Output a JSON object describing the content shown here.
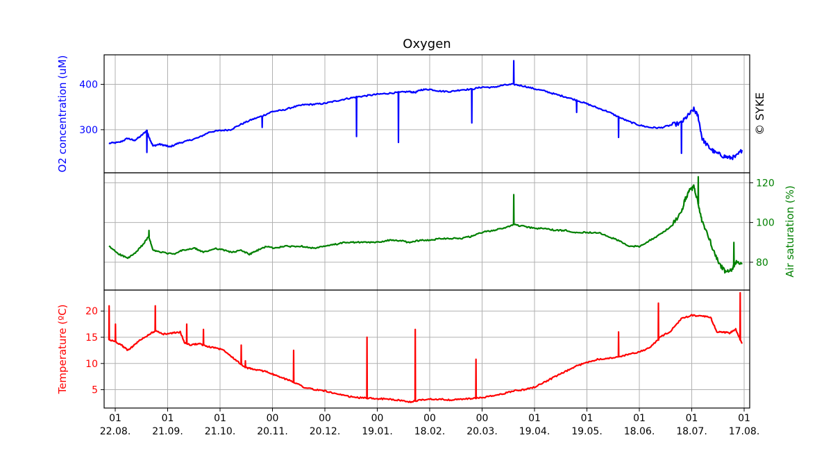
{
  "title": "Oxygen",
  "watermark": "© SYKE",
  "colors": {
    "o2": "#0000ff",
    "sat": "#008000",
    "temp": "#ff0000",
    "grid": "#b0b0b0"
  },
  "x_ticks": [
    {
      "top": "01",
      "bottom": "22.08."
    },
    {
      "top": "01",
      "bottom": "21.09."
    },
    {
      "top": "01",
      "bottom": "21.10."
    },
    {
      "top": "00",
      "bottom": "20.11."
    },
    {
      "top": "00",
      "bottom": "20.12."
    },
    {
      "top": "00",
      "bottom": "19.01."
    },
    {
      "top": "00",
      "bottom": "18.02."
    },
    {
      "top": "00",
      "bottom": "20.03."
    },
    {
      "top": "01",
      "bottom": "19.04."
    },
    {
      "top": "01",
      "bottom": "19.05."
    },
    {
      "top": "01",
      "bottom": "18.06."
    },
    {
      "top": "01",
      "bottom": "18.07."
    },
    {
      "top": "01",
      "bottom": "17.08."
    }
  ],
  "chart_data": [
    {
      "type": "line",
      "title": "Oxygen",
      "ylabel": "O2 concentration (uM)",
      "yticks": [
        300,
        400
      ],
      "ylim": [
        205,
        465
      ],
      "grid": true,
      "series": [
        {
          "points": [
            [
              -0.3,
              270
            ],
            [
              0.2,
              272
            ],
            [
              0.6,
              281
            ],
            [
              0.9,
              276
            ],
            [
              1.2,
              285
            ],
            [
              1.5,
              298
            ],
            [
              1.6,
              285
            ],
            [
              1.8,
              264
            ],
            [
              2.1,
              268
            ],
            [
              2.4,
              265
            ],
            [
              2.6,
              262
            ],
            [
              3.0,
              270
            ],
            [
              3.5,
              276
            ],
            [
              4.0,
              283
            ],
            [
              4.5,
              295
            ],
            [
              5.0,
              298
            ],
            [
              5.5,
              300
            ],
            [
              6.0,
              312
            ],
            [
              6.5,
              322
            ],
            [
              7.0,
              330
            ],
            [
              7.5,
              340
            ],
            [
              8.0,
              343
            ],
            [
              8.5,
              350
            ],
            [
              9.0,
              355
            ],
            [
              9.5,
              356
            ],
            [
              10.0,
              358
            ],
            [
              10.5,
              363
            ],
            [
              11.0,
              368
            ],
            [
              11.5,
              372
            ],
            [
              12.0,
              375
            ],
            [
              12.5,
              378
            ],
            [
              13.0,
              380
            ],
            [
              13.5,
              382
            ],
            [
              14.0,
              384
            ],
            [
              14.3,
              382
            ],
            [
              14.6,
              388
            ],
            [
              15.0,
              389
            ],
            [
              15.5,
              385
            ],
            [
              16.0,
              384
            ],
            [
              16.5,
              388
            ],
            [
              17.0,
              389
            ],
            [
              17.5,
              394
            ],
            [
              18.0,
              393
            ],
            [
              18.5,
              398
            ],
            [
              19.0,
              400
            ],
            [
              19.5,
              396
            ],
            [
              20.0,
              390
            ],
            [
              20.5,
              385
            ],
            [
              21.0,
              378
            ],
            [
              21.5,
              372
            ],
            [
              22.0,
              365
            ],
            [
              22.5,
              357
            ],
            [
              23.0,
              348
            ],
            [
              23.5,
              340
            ],
            [
              24.0,
              328
            ],
            [
              24.5,
              318
            ],
            [
              25.0,
              310
            ],
            [
              25.5,
              305
            ],
            [
              26.0,
              304
            ],
            [
              26.5,
              310
            ],
            [
              27.0,
              315
            ],
            [
              27.3,
              330
            ],
            [
              27.6,
              345
            ],
            [
              27.8,
              330
            ],
            [
              28.0,
              280
            ],
            [
              28.3,
              262
            ],
            [
              28.6,
              250
            ],
            [
              29.0,
              242
            ],
            [
              29.3,
              238
            ],
            [
              29.6,
              240
            ],
            [
              29.9,
              255
            ]
          ],
          "spikes": [
            [
              1.5,
              250
            ],
            [
              7.0,
              305
            ],
            [
              11.5,
              285
            ],
            [
              13.5,
              272
            ],
            [
              17.0,
              315
            ],
            [
              19.0,
              452
            ],
            [
              22.0,
              338
            ],
            [
              24.0,
              283
            ],
            [
              27.0,
              248
            ]
          ]
        }
      ]
    },
    {
      "type": "line",
      "ylabel": "Air saturation (%)",
      "yticks": [
        80,
        100,
        120
      ],
      "ylim": [
        66,
        125
      ],
      "grid": true,
      "series": [
        {
          "points": [
            [
              -0.3,
              88
            ],
            [
              0.2,
              84
            ],
            [
              0.6,
              82
            ],
            [
              1.0,
              85
            ],
            [
              1.4,
              90
            ],
            [
              1.6,
              93
            ],
            [
              1.8,
              86
            ],
            [
              2.2,
              85
            ],
            [
              2.8,
              84
            ],
            [
              3.2,
              86
            ],
            [
              3.8,
              87
            ],
            [
              4.2,
              85
            ],
            [
              4.8,
              87
            ],
            [
              5.2,
              86
            ],
            [
              5.6,
              85
            ],
            [
              6.0,
              86
            ],
            [
              6.4,
              84
            ],
            [
              6.8,
              86
            ],
            [
              7.2,
              88
            ],
            [
              7.6,
              87
            ],
            [
              8.0,
              88
            ],
            [
              8.5,
              88
            ],
            [
              9.0,
              88
            ],
            [
              9.5,
              87
            ],
            [
              10.0,
              88
            ],
            [
              10.5,
              89
            ],
            [
              11.0,
              90
            ],
            [
              11.5,
              90
            ],
            [
              12.0,
              90
            ],
            [
              12.5,
              90
            ],
            [
              13.0,
              91
            ],
            [
              13.5,
              91
            ],
            [
              14.0,
              90
            ],
            [
              14.5,
              91
            ],
            [
              15.0,
              91
            ],
            [
              15.5,
              92
            ],
            [
              16.0,
              92
            ],
            [
              16.5,
              92
            ],
            [
              17.0,
              93
            ],
            [
              17.5,
              95
            ],
            [
              18.0,
              96
            ],
            [
              18.5,
              97
            ],
            [
              19.0,
              99
            ],
            [
              19.5,
              98
            ],
            [
              20.0,
              97
            ],
            [
              20.5,
              97
            ],
            [
              21.0,
              96
            ],
            [
              21.5,
              96
            ],
            [
              22.0,
              95
            ],
            [
              22.5,
              95
            ],
            [
              23.0,
              95
            ],
            [
              23.5,
              93
            ],
            [
              24.0,
              91
            ],
            [
              24.5,
              88
            ],
            [
              25.0,
              88
            ],
            [
              25.5,
              91
            ],
            [
              26.0,
              94
            ],
            [
              26.5,
              98
            ],
            [
              27.0,
              105
            ],
            [
              27.2,
              112
            ],
            [
              27.4,
              116
            ],
            [
              27.6,
              118
            ],
            [
              27.8,
              110
            ],
            [
              28.0,
              100
            ],
            [
              28.3,
              93
            ],
            [
              28.6,
              84
            ],
            [
              28.9,
              78
            ],
            [
              29.1,
              75
            ],
            [
              29.4,
              76
            ],
            [
              29.6,
              80
            ],
            [
              29.9,
              79
            ]
          ],
          "spikes": [
            [
              1.6,
              96
            ],
            [
              19.0,
              114
            ],
            [
              27.8,
              123
            ],
            [
              29.5,
              90
            ]
          ]
        }
      ]
    },
    {
      "type": "line",
      "ylabel": "Temperature (ºC)",
      "yticks": [
        5,
        10,
        15,
        20
      ],
      "ylim": [
        1.5,
        24
      ],
      "grid": true,
      "series": [
        {
          "points": [
            [
              -0.3,
              14.5
            ],
            [
              0.0,
              14.2
            ],
            [
              0.3,
              13.5
            ],
            [
              0.6,
              12.5
            ],
            [
              0.9,
              13.5
            ],
            [
              1.2,
              14.5
            ],
            [
              1.6,
              15.5
            ],
            [
              1.9,
              16.2
            ],
            [
              2.3,
              15.6
            ],
            [
              2.7,
              15.8
            ],
            [
              3.1,
              16.0
            ],
            [
              3.3,
              14.0
            ],
            [
              3.6,
              13.5
            ],
            [
              4.0,
              13.8
            ],
            [
              4.4,
              13.2
            ],
            [
              4.8,
              13.0
            ],
            [
              5.2,
              12.5
            ],
            [
              5.5,
              11.5
            ],
            [
              5.8,
              10.5
            ],
            [
              6.2,
              9.2
            ],
            [
              6.5,
              9.0
            ],
            [
              6.8,
              8.7
            ],
            [
              7.2,
              8.5
            ],
            [
              7.6,
              7.8
            ],
            [
              8.0,
              7.2
            ],
            [
              8.5,
              6.5
            ],
            [
              9.0,
              5.5
            ],
            [
              9.5,
              5.0
            ],
            [
              10.0,
              4.8
            ],
            [
              10.5,
              4.2
            ],
            [
              11.0,
              3.8
            ],
            [
              11.5,
              3.5
            ],
            [
              12.0,
              3.4
            ],
            [
              12.5,
              3.3
            ],
            [
              13.0,
              3.2
            ],
            [
              13.5,
              3.0
            ],
            [
              14.0,
              2.6
            ],
            [
              14.5,
              3.0
            ],
            [
              15.0,
              3.2
            ],
            [
              15.5,
              3.2
            ],
            [
              16.0,
              3.0
            ],
            [
              16.5,
              3.2
            ],
            [
              17.0,
              3.3
            ],
            [
              17.5,
              3.5
            ],
            [
              18.0,
              3.8
            ],
            [
              18.5,
              4.2
            ],
            [
              19.0,
              4.8
            ],
            [
              19.5,
              5.0
            ],
            [
              20.0,
              5.5
            ],
            [
              20.5,
              6.5
            ],
            [
              21.0,
              7.5
            ],
            [
              21.5,
              8.5
            ],
            [
              22.0,
              9.5
            ],
            [
              22.5,
              10.2
            ],
            [
              23.0,
              10.8
            ],
            [
              23.5,
              11.0
            ],
            [
              24.0,
              11.2
            ],
            [
              24.5,
              11.8
            ],
            [
              25.0,
              12.2
            ],
            [
              25.5,
              13.0
            ],
            [
              26.0,
              15.0
            ],
            [
              26.5,
              16.2
            ],
            [
              27.0,
              18.5
            ],
            [
              27.5,
              19.2
            ],
            [
              28.0,
              19.0
            ],
            [
              28.4,
              18.8
            ],
            [
              28.7,
              16.0
            ],
            [
              29.0,
              16.0
            ],
            [
              29.3,
              15.8
            ],
            [
              29.6,
              16.5
            ],
            [
              29.9,
              13.8
            ]
          ],
          "spikes": [
            [
              -0.3,
              21.0
            ],
            [
              0.0,
              17.5
            ],
            [
              1.9,
              21.0
            ],
            [
              3.4,
              17.5
            ],
            [
              4.2,
              16.5
            ],
            [
              6.0,
              13.5
            ],
            [
              6.2,
              10.5
            ],
            [
              8.5,
              12.5
            ],
            [
              12.0,
              15.0
            ],
            [
              14.3,
              16.5
            ],
            [
              17.2,
              10.8
            ],
            [
              24.0,
              16.0
            ],
            [
              25.9,
              21.5
            ],
            [
              29.8,
              23.5
            ]
          ]
        }
      ]
    }
  ]
}
